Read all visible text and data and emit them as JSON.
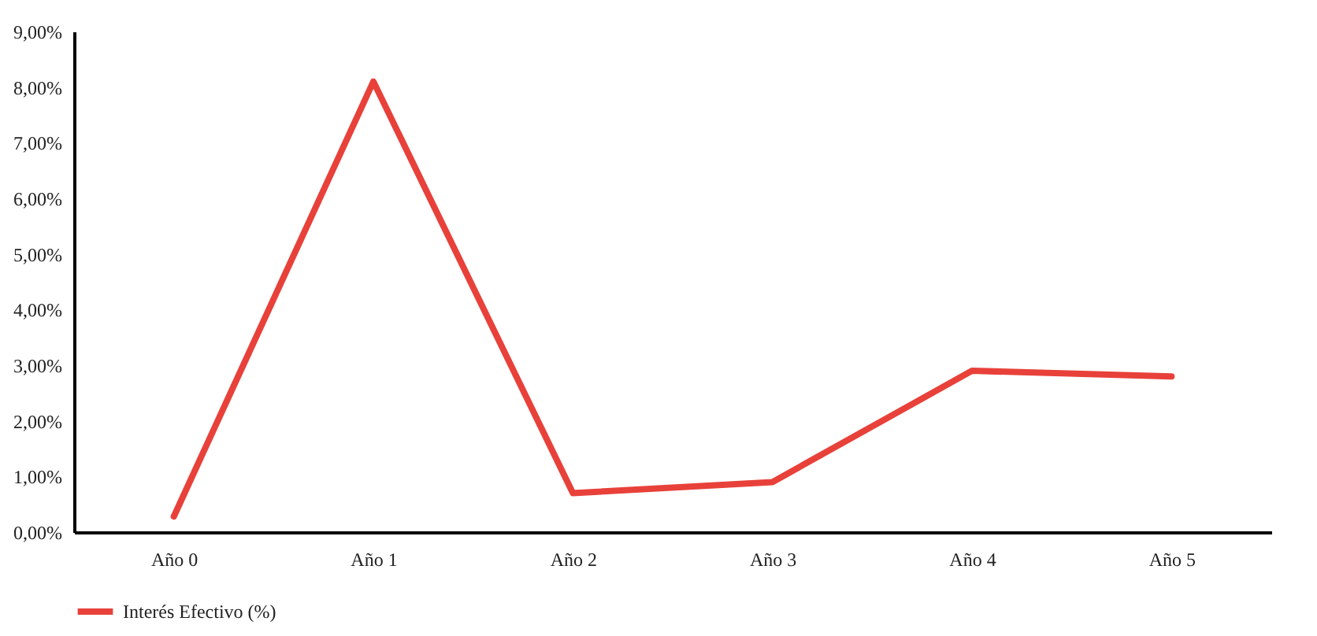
{
  "chart_data": {
    "type": "line",
    "categories": [
      "Año 0",
      "Año 1",
      "Año 2",
      "Año 3",
      "Año 4",
      "Año 5"
    ],
    "series": [
      {
        "name": "Interés Efectivo (%)",
        "color": "#e8413a",
        "values": [
          0.28,
          8.1,
          0.7,
          0.9,
          2.9,
          2.8
        ]
      }
    ],
    "ylim": [
      0,
      9
    ],
    "yticks": [
      {
        "value": 0,
        "label": "0,00%"
      },
      {
        "value": 1,
        "label": "1,00%"
      },
      {
        "value": 2,
        "label": "2,00%"
      },
      {
        "value": 3,
        "label": "3,00%"
      },
      {
        "value": 4,
        "label": "4,00%"
      },
      {
        "value": 5,
        "label": "5,00%"
      },
      {
        "value": 6,
        "label": "6,00%"
      },
      {
        "value": 7,
        "label": "7,00%"
      },
      {
        "value": 8,
        "label": "8,00%"
      },
      {
        "value": 9,
        "label": "9,00%"
      }
    ],
    "grid": false,
    "legend": "bottom",
    "marker": "none",
    "line_style": "solid"
  }
}
